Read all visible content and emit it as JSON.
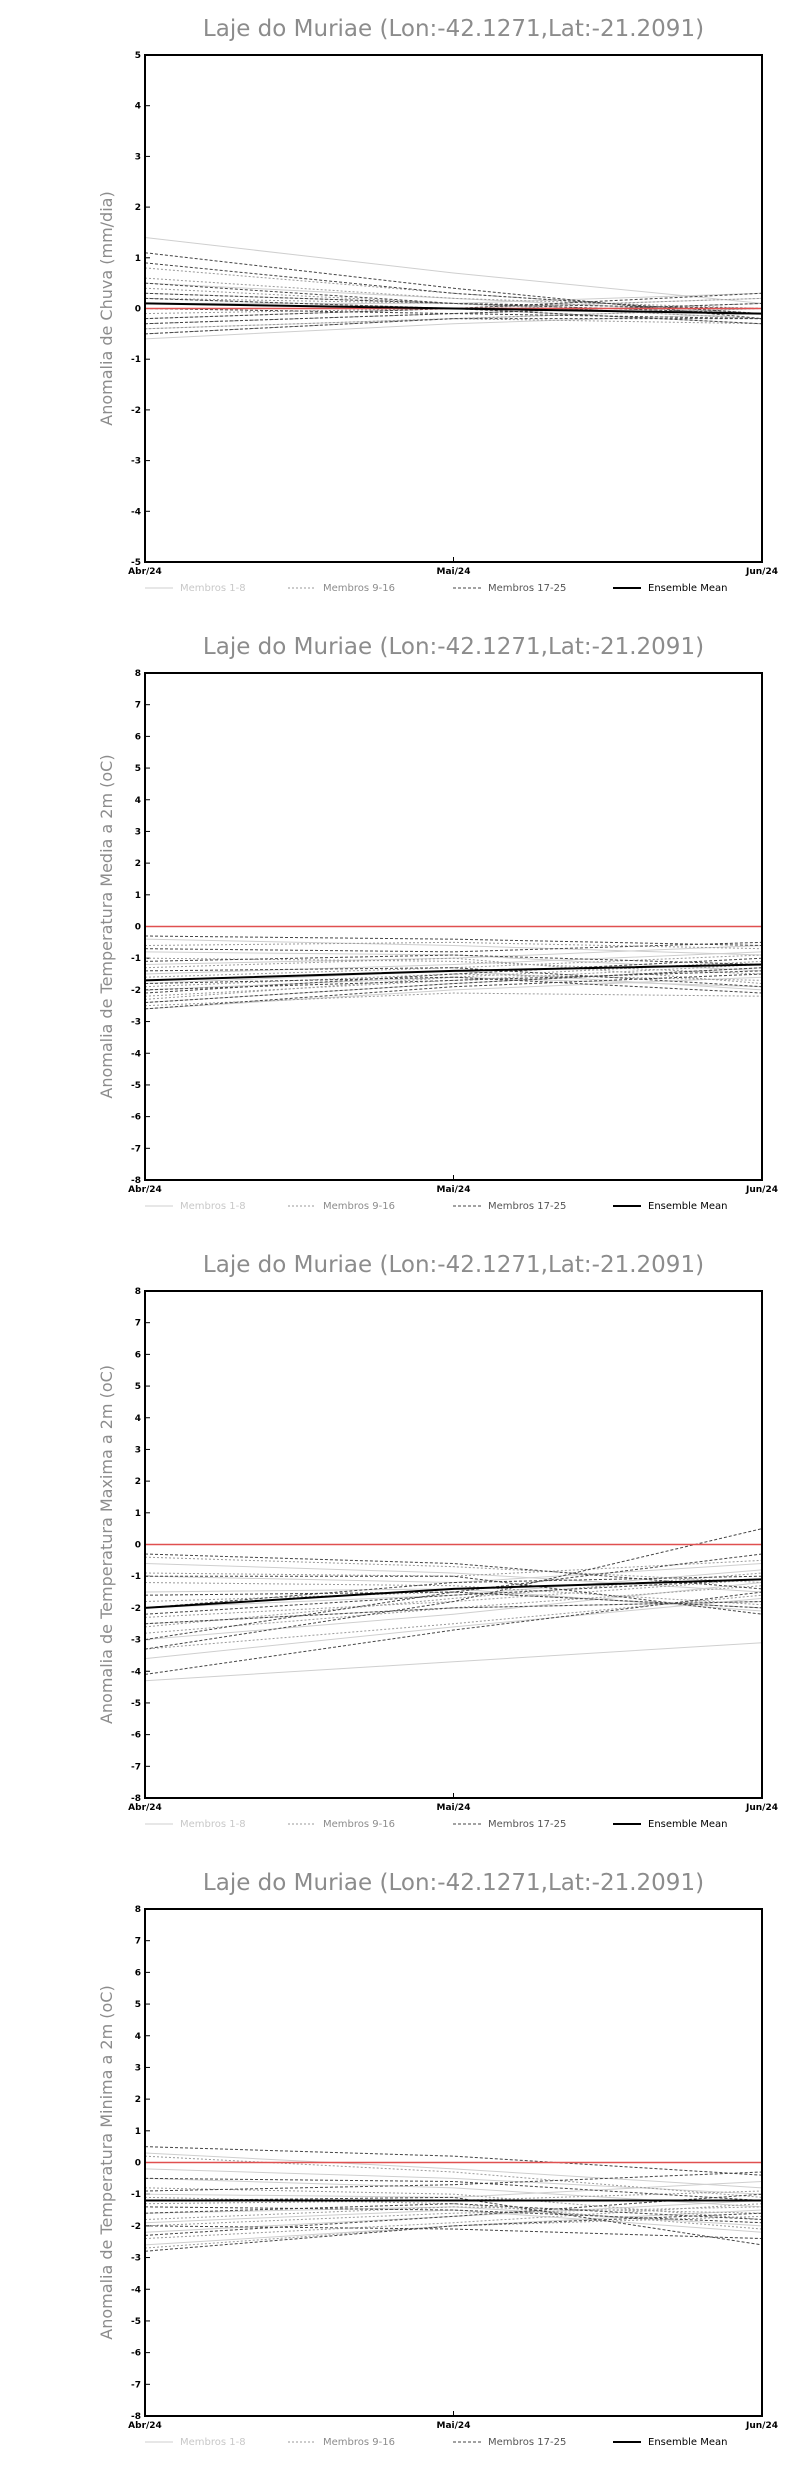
{
  "chart_data": [
    {
      "type": "line",
      "title": "Laje do Muriae (Lon:-42.1271,Lat:-21.2091)",
      "ylabel": "Anomalia de Chuva (mm/dia)",
      "xlabel": "",
      "x": [
        "Abr/24",
        "Mai/24",
        "Jun/24"
      ],
      "ylim": [
        -5,
        5
      ],
      "yticks": [
        -5,
        -4,
        -3,
        -2,
        -1,
        0,
        1,
        2,
        3,
        4,
        5
      ],
      "legend": [
        "Membros 1-8",
        "Membros 9-16",
        "Membros 17-25",
        "Ensemble Mean"
      ],
      "legend_position": "bottom",
      "colors": {
        "members_1_8": "#cfcfcf",
        "members_9_16": "#9a9a9a",
        "members_17_25": "#444444",
        "ensemble": "#000000",
        "reference": "#e05050"
      },
      "members_1_8": [
        [
          1.4,
          0.7,
          0.1
        ],
        [
          0.3,
          0.1,
          -0.2
        ],
        [
          -0.4,
          -0.2,
          0.0
        ],
        [
          0.1,
          0.1,
          0.3
        ],
        [
          -0.6,
          -0.3,
          -0.1
        ],
        [
          0.5,
          0.2,
          -0.1
        ],
        [
          -0.2,
          0.0,
          0.2
        ],
        [
          0.2,
          0.0,
          -0.3
        ]
      ],
      "members_9_16": [
        [
          0.8,
          0.3,
          -0.1
        ],
        [
          -0.3,
          -0.1,
          0.1
        ],
        [
          0.2,
          0.1,
          -0.2
        ],
        [
          -0.5,
          -0.2,
          0.0
        ],
        [
          0.4,
          0.1,
          -0.1
        ],
        [
          -0.1,
          0.0,
          0.2
        ],
        [
          0.6,
          0.2,
          0.0
        ],
        [
          -0.4,
          -0.2,
          -0.3
        ]
      ],
      "members_17_25": [
        [
          1.1,
          0.4,
          -0.2
        ],
        [
          0.9,
          0.3,
          -0.1
        ],
        [
          0.3,
          0.1,
          0.0
        ],
        [
          -0.5,
          -0.2,
          -0.2
        ],
        [
          0.2,
          0.0,
          -0.3
        ],
        [
          -0.3,
          -0.1,
          0.1
        ],
        [
          0.5,
          0.1,
          -0.1
        ],
        [
          0.0,
          -0.1,
          -0.2
        ],
        [
          -0.2,
          0.0,
          0.3
        ]
      ],
      "ensemble_mean": [
        0.1,
        0.0,
        -0.1
      ],
      "reference": [
        0.0,
        0.0,
        0.0
      ]
    },
    {
      "type": "line",
      "title": "Laje do Muriae (Lon:-42.1271,Lat:-21.2091)",
      "ylabel": "Anomalia de Temperatura Media a 2m (oC)",
      "xlabel": "",
      "x": [
        "Abr/24",
        "Mai/24",
        "Jun/24"
      ],
      "ylim": [
        -8,
        8
      ],
      "yticks": [
        -8,
        -7,
        -6,
        -5,
        -4,
        -3,
        -2,
        -1,
        0,
        1,
        2,
        3,
        4,
        5,
        6,
        7,
        8
      ],
      "legend": [
        "Membros 1-8",
        "Membros 9-16",
        "Membros 17-25",
        "Ensemble Mean"
      ],
      "legend_position": "bottom",
      "colors": {
        "members_1_8": "#cfcfcf",
        "members_9_16": "#9a9a9a",
        "members_17_25": "#444444",
        "ensemble": "#000000",
        "reference": "#e05050"
      },
      "members_1_8": [
        [
          -2.4,
          -1.8,
          -1.3
        ],
        [
          -1.5,
          -1.2,
          -0.8
        ],
        [
          -2.0,
          -1.6,
          -1.9
        ],
        [
          -0.8,
          -0.9,
          -1.4
        ],
        [
          -2.6,
          -2.0,
          -1.6
        ],
        [
          -1.2,
          -1.0,
          -0.6
        ],
        [
          -1.8,
          -1.4,
          -2.0
        ],
        [
          -0.4,
          -0.6,
          -0.9
        ]
      ],
      "members_9_16": [
        [
          -2.2,
          -1.7,
          -1.2
        ],
        [
          -1.0,
          -1.1,
          -1.5
        ],
        [
          -2.5,
          -2.1,
          -2.2
        ],
        [
          -1.6,
          -1.3,
          -0.9
        ],
        [
          -0.6,
          -0.5,
          -0.7
        ],
        [
          -1.9,
          -1.5,
          -1.7
        ],
        [
          -2.3,
          -1.6,
          -1.1
        ],
        [
          -1.3,
          -1.0,
          -1.8
        ]
      ],
      "members_17_25": [
        [
          -2.6,
          -1.9,
          -1.5
        ],
        [
          -2.1,
          -1.5,
          -1.0
        ],
        [
          -1.4,
          -1.3,
          -1.9
        ],
        [
          -0.7,
          -0.8,
          -0.5
        ],
        [
          -1.8,
          -1.6,
          -2.1
        ],
        [
          -2.4,
          -1.8,
          -1.3
        ],
        [
          -1.1,
          -0.9,
          -1.2
        ],
        [
          -0.3,
          -0.4,
          -0.6
        ],
        [
          -2.0,
          -1.7,
          -1.4
        ]
      ],
      "ensemble_mean": [
        -1.7,
        -1.4,
        -1.2
      ],
      "reference": [
        0.0,
        0.0,
        0.0
      ]
    },
    {
      "type": "line",
      "title": "Laje do Muriae (Lon:-42.1271,Lat:-21.2091)",
      "ylabel": "Anomalia de Temperatura Maxima a 2m (oC)",
      "xlabel": "",
      "x": [
        "Abr/24",
        "Mai/24",
        "Jun/24"
      ],
      "ylim": [
        -8,
        8
      ],
      "yticks": [
        -8,
        -7,
        -6,
        -5,
        -4,
        -3,
        -2,
        -1,
        0,
        1,
        2,
        3,
        4,
        5,
        6,
        7,
        8
      ],
      "legend": [
        "Membros 1-8",
        "Membros 9-16",
        "Membros 17-25",
        "Ensemble Mean"
      ],
      "legend_position": "bottom",
      "colors": {
        "members_1_8": "#cfcfcf",
        "members_9_16": "#9a9a9a",
        "members_17_25": "#444444",
        "ensemble": "#000000",
        "reference": "#e05050"
      },
      "members_1_8": [
        [
          -4.3,
          -3.7,
          -3.1
        ],
        [
          -2.5,
          -2.0,
          -1.8
        ],
        [
          -1.5,
          -1.4,
          -2.1
        ],
        [
          -3.0,
          -2.2,
          -1.2
        ],
        [
          -0.6,
          -0.9,
          -1.5
        ],
        [
          -2.0,
          -1.6,
          -0.8
        ],
        [
          -3.6,
          -2.6,
          -1.7
        ],
        [
          -1.0,
          -1.2,
          -0.6
        ]
      ],
      "members_9_16": [
        [
          -2.8,
          -2.0,
          -1.3
        ],
        [
          -1.8,
          -1.5,
          -2.0
        ],
        [
          -3.3,
          -2.5,
          -1.6
        ],
        [
          -0.9,
          -1.0,
          -0.5
        ],
        [
          -2.3,
          -1.8,
          -1.1
        ],
        [
          -1.2,
          -1.3,
          -1.9
        ],
        [
          -2.6,
          -1.7,
          -0.9
        ],
        [
          -0.4,
          -0.7,
          -1.2
        ]
      ],
      "members_17_25": [
        [
          -4.1,
          -2.7,
          -1.5
        ],
        [
          -3.3,
          -1.8,
          0.5
        ],
        [
          -2.0,
          -1.2,
          -1.0
        ],
        [
          -1.0,
          -1.0,
          -2.2
        ],
        [
          -2.5,
          -2.0,
          -1.8
        ],
        [
          -3.0,
          -1.5,
          -0.3
        ],
        [
          -1.6,
          -1.5,
          -2.0
        ],
        [
          -0.3,
          -0.6,
          -1.4
        ],
        [
          -2.2,
          -1.6,
          -1.1
        ]
      ],
      "ensemble_mean": [
        -2.0,
        -1.4,
        -1.1
      ],
      "reference": [
        0.0,
        0.0,
        0.0
      ]
    },
    {
      "type": "line",
      "title": "Laje do Muriae (Lon:-42.1271,Lat:-21.2091)",
      "ylabel": "Anomalia de Temperatura Minima a 2m (oC)",
      "xlabel": "",
      "x": [
        "Abr/24",
        "Mai/24",
        "Jun/24"
      ],
      "ylim": [
        -8,
        8
      ],
      "yticks": [
        -8,
        -7,
        -6,
        -5,
        -4,
        -3,
        -2,
        -1,
        0,
        1,
        2,
        3,
        4,
        5,
        6,
        7,
        8
      ],
      "legend": [
        "Membros 1-8",
        "Membros 9-16",
        "Membros 17-25",
        "Ensemble Mean"
      ],
      "legend_position": "bottom",
      "colors": {
        "members_1_8": "#cfcfcf",
        "members_9_16": "#9a9a9a",
        "members_17_25": "#444444",
        "ensemble": "#000000",
        "reference": "#e05050"
      },
      "members_1_8": [
        [
          -2.2,
          -1.7,
          -1.2
        ],
        [
          -0.5,
          -0.8,
          -1.4
        ],
        [
          -1.6,
          -1.4,
          -2.0
        ],
        [
          0.3,
          -0.2,
          -0.8
        ],
        [
          -2.6,
          -2.0,
          -1.5
        ],
        [
          -1.0,
          -1.1,
          -0.6
        ],
        [
          -1.9,
          -1.5,
          -2.2
        ],
        [
          -0.2,
          -0.5,
          -1.0
        ]
      ],
      "members_9_16": [
        [
          -1.8,
          -1.4,
          -1.6
        ],
        [
          -2.4,
          -1.9,
          -1.3
        ],
        [
          -0.8,
          -1.0,
          -1.8
        ],
        [
          -1.3,
          -1.2,
          -0.9
        ],
        [
          0.2,
          -0.3,
          -1.1
        ],
        [
          -2.0,
          -1.6,
          -1.4
        ],
        [
          -1.1,
          -1.3,
          -2.1
        ],
        [
          -2.7,
          -2.0,
          -1.7
        ]
      ],
      "members_17_25": [
        [
          0.5,
          0.2,
          -0.4
        ],
        [
          -2.8,
          -2.0,
          -1.6
        ],
        [
          -1.2,
          -1.1,
          -2.6
        ],
        [
          -2.3,
          -1.7,
          -1.0
        ],
        [
          -0.5,
          -0.6,
          -1.2
        ],
        [
          -1.6,
          -1.3,
          -1.8
        ],
        [
          -2.0,
          -2.1,
          -2.4
        ],
        [
          -0.9,
          -0.7,
          -0.3
        ],
        [
          -1.4,
          -1.5,
          -1.9
        ]
      ],
      "ensemble_mean": [
        -1.2,
        -1.2,
        -1.2
      ],
      "reference": [
        0.0,
        0.0,
        0.0
      ]
    }
  ]
}
